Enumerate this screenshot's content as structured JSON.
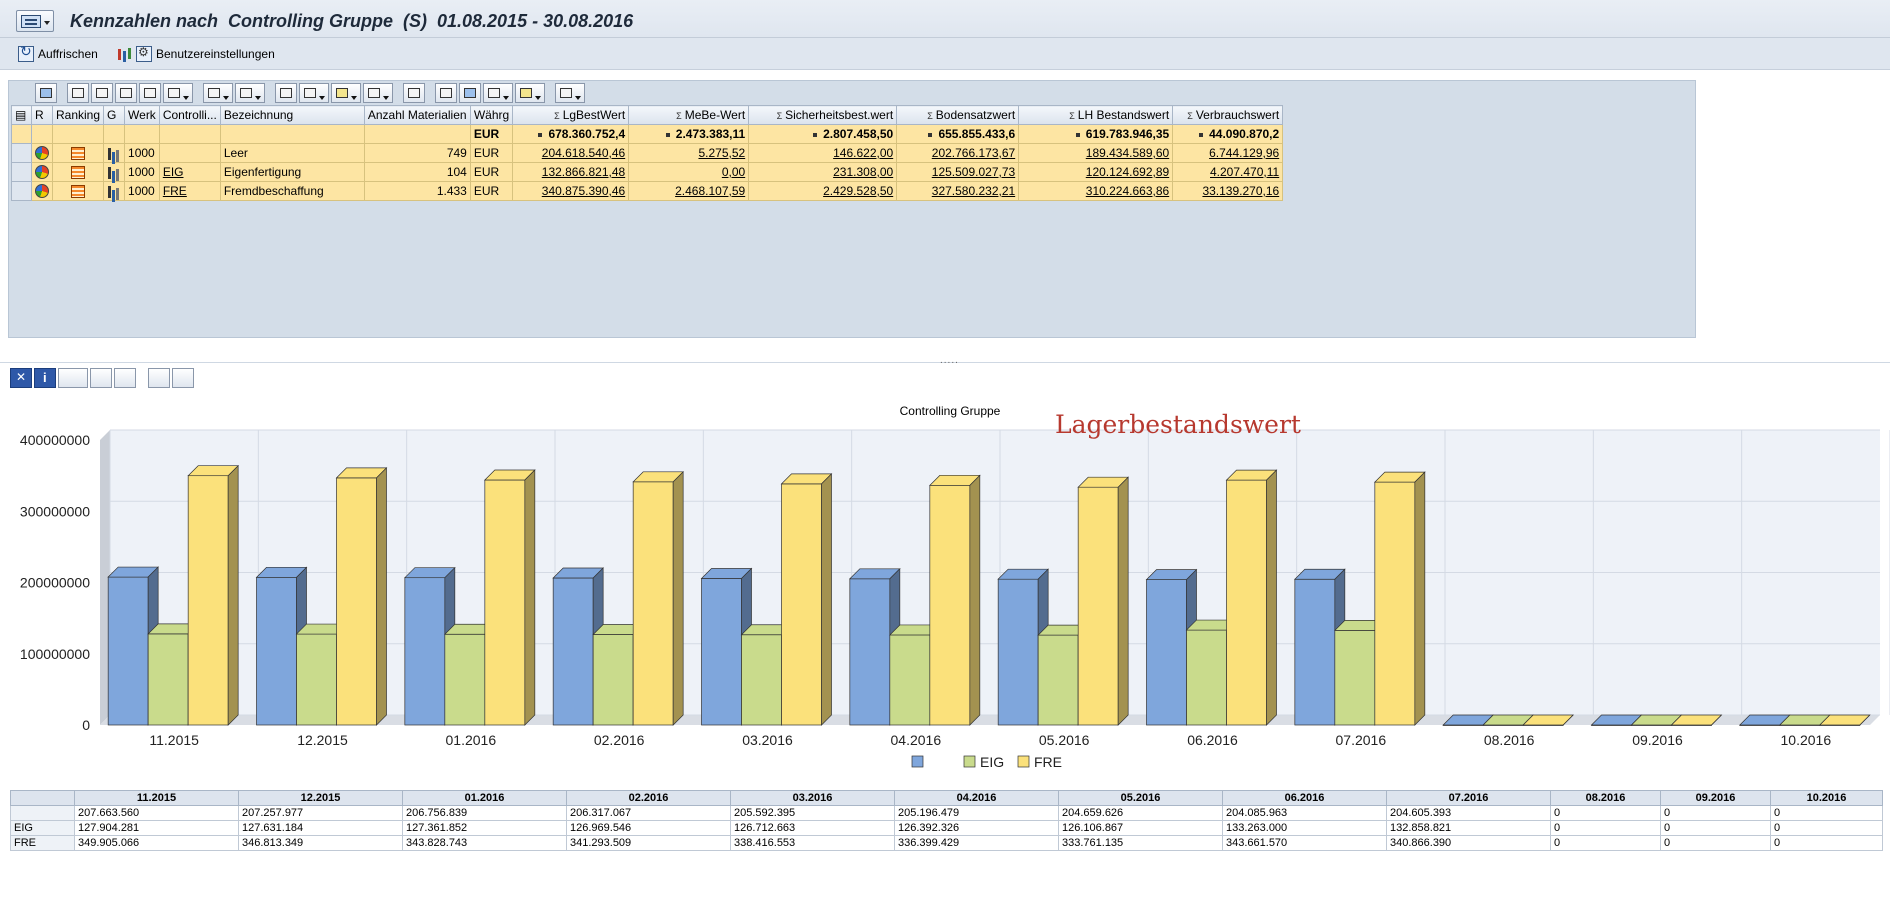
{
  "window": {
    "title": "Kennzahlen nach  Controlling Gruppe  (S)  01.08.2015 - 30.08.2016"
  },
  "app_toolbar": {
    "refresh_label": "Auffrischen",
    "settings_label": "Benutzereinstellungen"
  },
  "grid": {
    "columns": [
      "R",
      "Ranking",
      "G",
      "Werk",
      "Controlli...",
      "Bezeichnung",
      "Anzahl Materialien",
      "Währg",
      "LgBestWert",
      "MeBe-Wert",
      "Sicherheitsbest.wert",
      "Bodensatzwert",
      "LH Bestandswert",
      "Verbrauchswert"
    ],
    "total": {
      "currency": "EUR",
      "lgbestwert": "678.360.752,4",
      "mebe": "2.473.383,11",
      "sicherheit": "2.807.458,50",
      "bodensatz": "655.855.433,6",
      "lh": "619.783.946,35",
      "verbrauch": "44.090.870,2"
    },
    "rows": [
      {
        "werk": "1000",
        "group": "",
        "name": "Leer",
        "count": "749",
        "currency": "EUR",
        "lgbestwert": "204.618.540,46",
        "mebe": "5.275,52",
        "sicherheit": "146.622,00",
        "bodensatz": "202.766.173,67",
        "lh": "189.434.589,60",
        "verbrauch": "6.744.129,96"
      },
      {
        "werk": "1000",
        "group": "EIG",
        "name": "Eigenfertigung",
        "count": "104",
        "currency": "EUR",
        "lgbestwert": "132.866.821,48",
        "mebe": "0,00",
        "sicherheit": "231.308,00",
        "bodensatz": "125.509.027,73",
        "lh": "120.124.692,89",
        "verbrauch": "4.207.470,11"
      },
      {
        "werk": "1000",
        "group": "FRE",
        "name": "Fremdbeschaffung",
        "count": "1.433",
        "currency": "EUR",
        "lgbestwert": "340.875.390,46",
        "mebe": "2.468.107,59",
        "sicherheit": "2.429.528,50",
        "bodensatz": "327.580.232,21",
        "lh": "310.224.663,86",
        "verbrauch": "33.139.270,16"
      }
    ]
  },
  "chart_data": {
    "type": "bar",
    "title": "Controlling Gruppe",
    "categories": [
      "11.2015",
      "12.2015",
      "01.2016",
      "02.2016",
      "03.2016",
      "04.2016",
      "05.2016",
      "06.2016",
      "07.2016",
      "08.2016",
      "09.2016",
      "10.2016"
    ],
    "series": [
      {
        "name": "",
        "color": "#7fa6dc",
        "values": [
          207663560,
          207257977,
          206756839,
          206317067,
          205592395,
          205196479,
          204659626,
          204085963,
          204605393,
          0,
          0,
          0
        ]
      },
      {
        "name": "EIG",
        "color": "#c9db8c",
        "values": [
          127904281,
          127631184,
          127361852,
          126969546,
          126712663,
          126392326,
          126106867,
          133263000,
          132858821,
          0,
          0,
          0
        ]
      },
      {
        "name": "FRE",
        "color": "#fbe17b",
        "values": [
          349905066,
          346813349,
          343828743,
          341293509,
          338416553,
          336399429,
          333761135,
          343661570,
          340866390,
          0,
          0,
          0
        ]
      }
    ],
    "ylim": [
      0,
      400000000
    ],
    "yticks": [
      "0",
      "100000000",
      "200000000",
      "300000000",
      "400000000"
    ],
    "legend": "bottom-center",
    "grid": true
  },
  "annotation": "Lagerbestandswert",
  "data_table": {
    "rows": [
      {
        "label": "",
        "values": [
          "207.663.560",
          "207.257.977",
          "206.756.839",
          "206.317.067",
          "205.592.395",
          "205.196.479",
          "204.659.626",
          "204.085.963",
          "204.605.393",
          "0",
          "0",
          "0"
        ]
      },
      {
        "label": "EIG",
        "values": [
          "127.904.281",
          "127.631.184",
          "127.361.852",
          "126.969.546",
          "126.712.663",
          "126.392.326",
          "126.106.867",
          "133.263.000",
          "132.858.821",
          "0",
          "0",
          "0"
        ]
      },
      {
        "label": "FRE",
        "values": [
          "349.905.066",
          "346.813.349",
          "343.828.743",
          "341.293.509",
          "338.416.553",
          "336.399.429",
          "333.761.135",
          "343.661.570",
          "340.866.390",
          "0",
          "0",
          "0"
        ]
      }
    ]
  }
}
